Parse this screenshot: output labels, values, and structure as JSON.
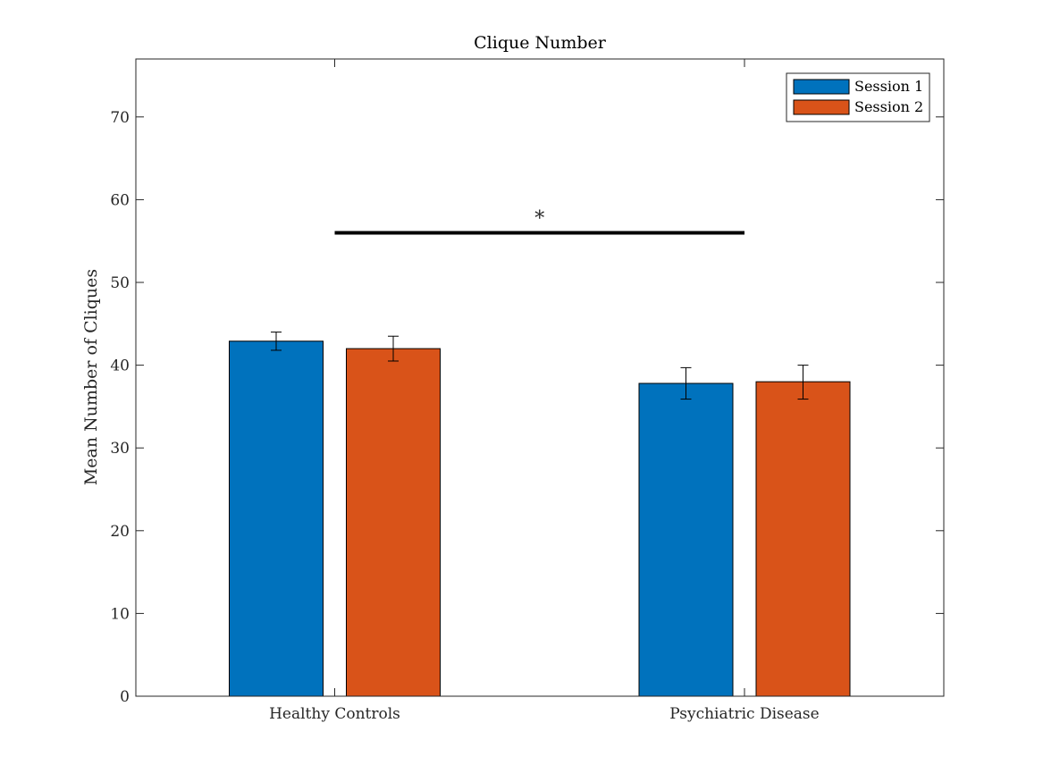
{
  "chart_data": {
    "type": "bar",
    "title": "Clique Number",
    "xlabel": "",
    "ylabel": "Mean Number of Cliques",
    "categories": [
      "Healthy Controls",
      "Psychiatric Disease"
    ],
    "ylim": [
      0,
      77
    ],
    "yticks": [
      0,
      10,
      20,
      30,
      40,
      50,
      60,
      70
    ],
    "grid": false,
    "legend_position": "top-right",
    "series": [
      {
        "name": "Session 1",
        "color": "#0072BD",
        "values": [
          42.9,
          37.8
        ],
        "error_low": [
          41.8,
          35.9
        ],
        "error_high": [
          44.0,
          39.7
        ]
      },
      {
        "name": "Session 2",
        "color": "#D95319",
        "values": [
          42.0,
          38.0
        ],
        "error_low": [
          40.5,
          35.9
        ],
        "error_high": [
          43.5,
          40.0
        ]
      }
    ],
    "annotations": [
      {
        "type": "significance-bracket",
        "from_category": "Healthy Controls",
        "to_category": "Psychiatric Disease",
        "y": 56,
        "label": "*"
      }
    ]
  }
}
